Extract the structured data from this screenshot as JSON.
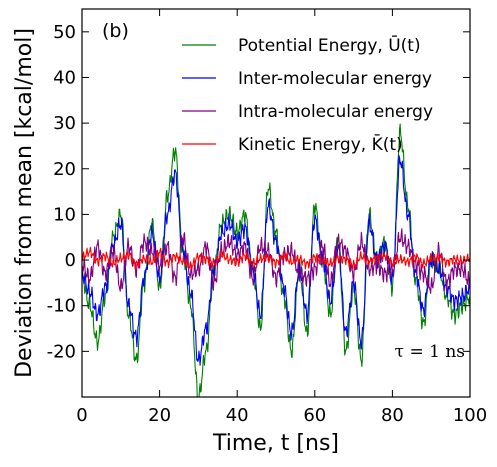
{
  "chart_data": {
    "type": "line",
    "panel_label": "(b)",
    "xlabel": "Time, t [ns]",
    "ylabel": "Deviation from mean [kcal/mol]",
    "xlim": [
      0,
      100
    ],
    "ylim": [
      -30,
      55
    ],
    "xticks": [
      0,
      20,
      40,
      60,
      80,
      100
    ],
    "yticks": [
      -20,
      -10,
      0,
      10,
      20,
      30,
      40,
      50
    ],
    "grid": false,
    "legend": {
      "position": "top-right",
      "entries": [
        {
          "label": "Potential Energy, Ū(t)",
          "color": "#008000"
        },
        {
          "label": "Inter-molecular energy",
          "color": "#0000ff"
        },
        {
          "label": "Intra-molecular energy",
          "color": "#800080"
        },
        {
          "label": "Kinetic Energy, K̄(t)",
          "color": "#ff0000"
        }
      ]
    },
    "annotation": "τ = 1 ns",
    "x": [
      0,
      2,
      4,
      6,
      8,
      10,
      12,
      14,
      16,
      18,
      20,
      22,
      24,
      26,
      28,
      30,
      32,
      34,
      36,
      38,
      40,
      42,
      44,
      46,
      48,
      50,
      52,
      54,
      56,
      58,
      60,
      62,
      64,
      66,
      68,
      70,
      72,
      74,
      76,
      78,
      80,
      82,
      84,
      86,
      88,
      90,
      92,
      94,
      96,
      98,
      100
    ],
    "series": [
      {
        "name": "Potential Energy, Ū(t)",
        "color": "#008000",
        "values": [
          -4,
          -10,
          -18,
          -8,
          5,
          10,
          -12,
          -22,
          -5,
          8,
          -6,
          14,
          24,
          2,
          -10,
          -30,
          -20,
          -2,
          8,
          10,
          6,
          10,
          -2,
          -15,
          16,
          6,
          -8,
          -20,
          -2,
          -16,
          12,
          0,
          -12,
          4,
          -20,
          -6,
          -22,
          10,
          0,
          4,
          -6,
          28,
          12,
          -4,
          -14,
          0,
          -2,
          -8,
          -12,
          -10,
          -8
        ]
      },
      {
        "name": "Inter-molecular energy",
        "color": "#0000ff",
        "values": [
          -3,
          -7,
          -12,
          -6,
          3,
          8,
          -10,
          -17,
          -4,
          6,
          -4,
          10,
          19,
          2,
          -7,
          -22,
          -15,
          -2,
          6,
          8,
          4,
          7,
          -2,
          -12,
          12,
          4,
          -6,
          -16,
          -2,
          -12,
          9,
          0,
          -9,
          3,
          -16,
          -5,
          -18,
          8,
          0,
          3,
          -4,
          22,
          10,
          -3,
          -11,
          0,
          -2,
          -6,
          -9,
          -8,
          -6
        ]
      },
      {
        "name": "Intra-molecular energy",
        "color": "#800080",
        "values": [
          -1,
          -4,
          3,
          -3,
          2,
          -6,
          3,
          -2,
          4,
          2,
          -1,
          3,
          -4,
          5,
          -3,
          -2,
          3,
          -5,
          2,
          4,
          1,
          3,
          -4,
          3,
          2,
          -4,
          1,
          2,
          -3,
          -4,
          -2,
          3,
          -5,
          4,
          2,
          -3,
          4,
          -2,
          -1,
          -3,
          -2,
          5,
          3,
          -1,
          -3,
          -6,
          2,
          -5,
          -2,
          -2,
          -5
        ]
      },
      {
        "name": "Kinetic Energy, K̄(t)",
        "color": "#ff0000",
        "values": [
          0.6,
          1.8,
          -0.3,
          0.9,
          -0.8,
          0.4,
          1.1,
          -0.9,
          0.3,
          -0.4,
          1.7,
          -0.6,
          0.8,
          -0.2,
          -1.4,
          0.7,
          0.2,
          -0.7,
          1.2,
          0.1,
          -0.4,
          0.9,
          -0.8,
          0.3,
          0.5,
          -0.6,
          1.0,
          -0.4,
          0.2,
          -0.9,
          0.6,
          -0.2,
          -0.7,
          0.4,
          0.1,
          -1.1,
          0.8,
          -0.3,
          0.5,
          0.9,
          -0.6,
          0.2,
          -0.4,
          0.7,
          -0.8,
          0.3,
          0.6,
          -0.5,
          0.2,
          -0.2,
          0.4
        ]
      }
    ]
  }
}
